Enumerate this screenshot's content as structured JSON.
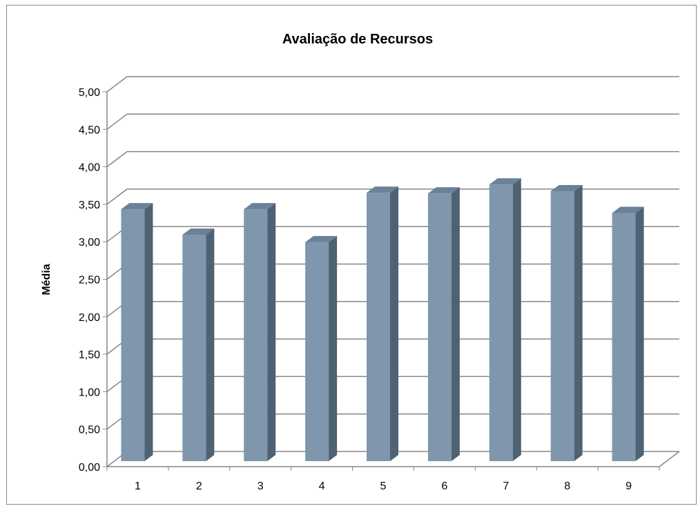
{
  "chart_data": {
    "type": "bar",
    "title": "Avaliação de Recursos",
    "xlabel": "",
    "ylabel": "Média",
    "categories": [
      "1",
      "2",
      "3",
      "4",
      "5",
      "6",
      "7",
      "8",
      "9"
    ],
    "values": [
      3.36,
      3.02,
      3.36,
      2.92,
      3.58,
      3.57,
      3.69,
      3.6,
      3.31
    ],
    "ylim": [
      0,
      5
    ],
    "yticks": [
      "0,00",
      "0,50",
      "1,00",
      "1,50",
      "2,00",
      "2,50",
      "3,00",
      "3,50",
      "4,00",
      "4,50",
      "5,00"
    ],
    "ytick_values": [
      0,
      0.5,
      1,
      1.5,
      2,
      2.5,
      3,
      3.5,
      4,
      4.5,
      5
    ],
    "grid": true,
    "legend": "none",
    "colors": {
      "bar_front": "#7f96ad",
      "bar_side": "#4f6273",
      "bar_top": "#6b8199",
      "grid": "#868686",
      "axis": "#868686",
      "text": "#000000"
    }
  }
}
